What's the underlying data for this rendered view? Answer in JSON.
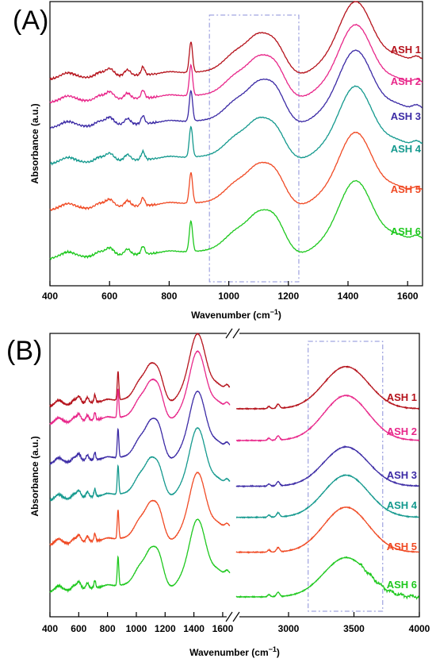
{
  "chart_data": [
    {
      "panel": "(A)",
      "type": "line",
      "xlabel": "Wavenumber (cm",
      "xlabel_sup": "−1",
      "xlabel_close": ")",
      "ylabel": "Absorbance (a.u.)",
      "xlim": [
        400,
        1650
      ],
      "xticks": [
        "400",
        "600",
        "800",
        "1000",
        "1200",
        "1400",
        "1600"
      ],
      "highlight_range": [
        935,
        1235
      ],
      "series": [
        {
          "name": "ASH 1",
          "color": "#b5121b"
        },
        {
          "name": "ASH 2",
          "color": "#e8278a"
        },
        {
          "name": "ASH 3",
          "color": "#3b2aa5"
        },
        {
          "name": "ASH 4",
          "color": "#14998e"
        },
        {
          "name": "ASH 5",
          "color": "#f04a24"
        },
        {
          "name": "ASH 6",
          "color": "#1ec81e"
        }
      ]
    },
    {
      "panel": "(B)",
      "type": "line",
      "xlabel": "Wavenumber (cm",
      "xlabel_sup": "−1",
      "xlabel_close": ")",
      "ylabel": "Absorbance (a.u.)",
      "xlim_left": [
        400,
        1650
      ],
      "xlim_right": [
        2600,
        4000
      ],
      "xticks": [
        "400",
        "600",
        "800",
        "1000",
        "1200",
        "1400",
        "1600",
        "3000",
        "3500",
        "4000"
      ],
      "highlight_range": [
        3150,
        3720
      ],
      "series": [
        {
          "name": "ASH 1",
          "color": "#b5121b"
        },
        {
          "name": "ASH 2",
          "color": "#e8278a"
        },
        {
          "name": "ASH 3",
          "color": "#3b2aa5"
        },
        {
          "name": "ASH 4",
          "color": "#14998e"
        },
        {
          "name": "ASH 5",
          "color": "#f04a24"
        },
        {
          "name": "ASH 6",
          "color": "#1ec81e"
        }
      ]
    }
  ]
}
